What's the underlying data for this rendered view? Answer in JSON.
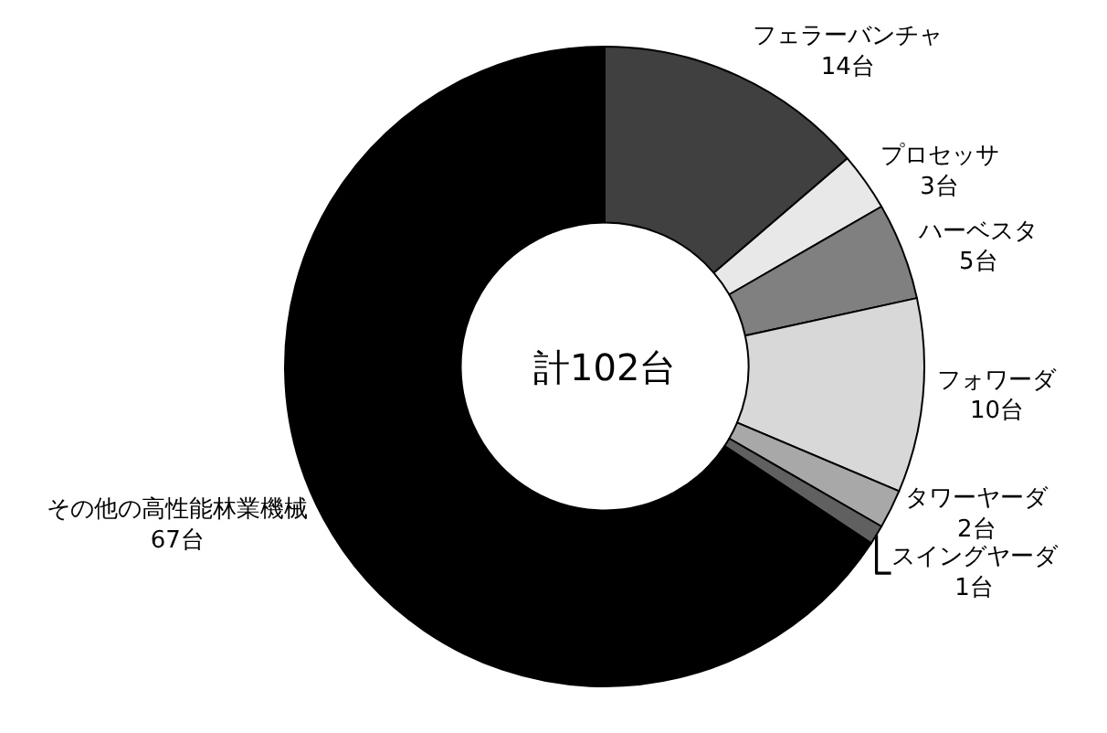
{
  "chart_data": {
    "type": "donut",
    "categories": [
      "フェラーバンチャ",
      "プロセッサ",
      "ハーベスタ",
      "フォワーダ",
      "タワーヤーダ",
      "スイングヤーダ",
      "その他の高性能林業機械"
    ],
    "values": [
      14,
      3,
      5,
      10,
      2,
      1,
      67
    ],
    "value_labels": [
      "14台",
      "3台",
      "5台",
      "10台",
      "2台",
      "1台",
      "67台"
    ],
    "colors": [
      "#404040",
      "#e8e8e8",
      "#808080",
      "#d8d8d8",
      "#a8a8a8",
      "#606060",
      "#000000"
    ],
    "annotations": [
      "計102台"
    ],
    "legend": false
  }
}
